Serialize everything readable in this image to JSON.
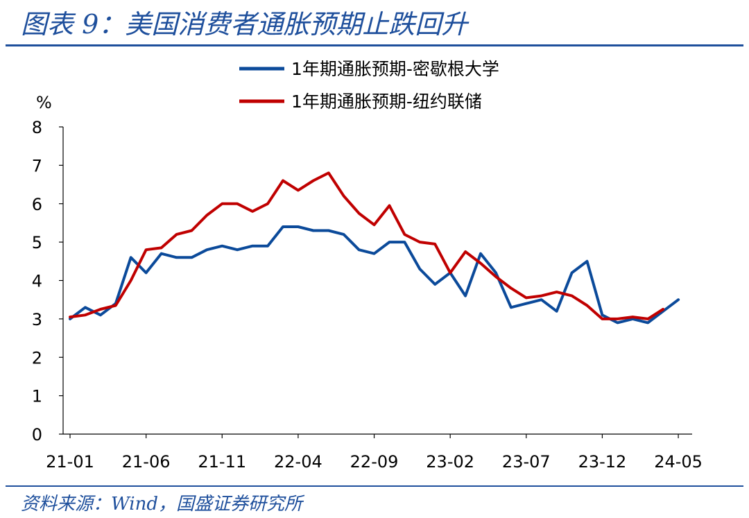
{
  "title": "图表 9：美国消费者通胀预期止跌回升",
  "source": "资料来源：Wind，国盛证券研究所",
  "colors": {
    "brand": "#1e4f9c",
    "umich": "#0b4a9a",
    "nyfed": "#c00000"
  },
  "chart_data": {
    "type": "line",
    "ylabel": "%",
    "ylim": [
      0,
      8
    ],
    "yticks": [
      "0",
      "1",
      "2",
      "3",
      "4",
      "5",
      "6",
      "7",
      "8"
    ],
    "xticks": [
      "21-01",
      "21-06",
      "21-11",
      "22-04",
      "22-09",
      "23-02",
      "23-07",
      "23-12",
      "24-05"
    ],
    "legend_position": "top-center",
    "grid": false,
    "series": [
      {
        "name": "1年期通胀预期-密歇根大学",
        "color": "#0b4a9a",
        "x": [
          "21-01",
          "21-02",
          "21-03",
          "21-04",
          "21-05",
          "21-06",
          "21-07",
          "21-08",
          "21-09",
          "21-10",
          "21-11",
          "21-12",
          "22-01",
          "22-02",
          "22-03",
          "22-04",
          "22-05",
          "22-06",
          "22-07",
          "22-08",
          "22-09",
          "22-10",
          "22-11",
          "22-12",
          "23-01",
          "23-02",
          "23-03",
          "23-04",
          "23-05",
          "23-06",
          "23-07",
          "23-08",
          "23-09",
          "23-10",
          "23-11",
          "23-12",
          "24-01",
          "24-02",
          "24-03",
          "24-04",
          "24-05"
        ],
        "values": [
          3.0,
          3.3,
          3.1,
          3.4,
          4.6,
          4.2,
          4.7,
          4.6,
          4.6,
          4.8,
          4.9,
          4.8,
          4.9,
          4.9,
          5.4,
          5.4,
          5.3,
          5.3,
          5.2,
          4.8,
          4.7,
          5.0,
          5.0,
          4.3,
          3.9,
          4.2,
          3.6,
          4.7,
          4.2,
          3.3,
          3.4,
          3.5,
          3.2,
          4.2,
          4.5,
          3.1,
          2.9,
          3.0,
          2.9,
          3.2,
          3.5
        ]
      },
      {
        "name": "1年期通胀预期-纽约联储",
        "color": "#c00000",
        "x": [
          "21-01",
          "21-02",
          "21-03",
          "21-04",
          "21-05",
          "21-06",
          "21-07",
          "21-08",
          "21-09",
          "21-10",
          "21-11",
          "21-12",
          "22-01",
          "22-02",
          "22-03",
          "22-04",
          "22-05",
          "22-06",
          "22-07",
          "22-08",
          "22-09",
          "22-10",
          "22-11",
          "22-12",
          "23-01",
          "23-02",
          "23-03",
          "23-04",
          "23-05",
          "23-06",
          "23-07",
          "23-08",
          "23-09",
          "23-10",
          "23-11",
          "23-12",
          "24-01",
          "24-02",
          "24-03",
          "24-04"
        ],
        "values": [
          3.05,
          3.1,
          3.25,
          3.35,
          4.0,
          4.8,
          4.85,
          5.2,
          5.3,
          5.7,
          6.0,
          6.0,
          5.8,
          6.0,
          6.6,
          6.35,
          6.6,
          6.8,
          6.2,
          5.75,
          5.45,
          5.95,
          5.2,
          5.0,
          4.95,
          4.2,
          4.75,
          4.45,
          4.1,
          3.8,
          3.55,
          3.6,
          3.7,
          3.6,
          3.35,
          3.0,
          3.0,
          3.05,
          3.0,
          3.25
        ]
      }
    ]
  }
}
